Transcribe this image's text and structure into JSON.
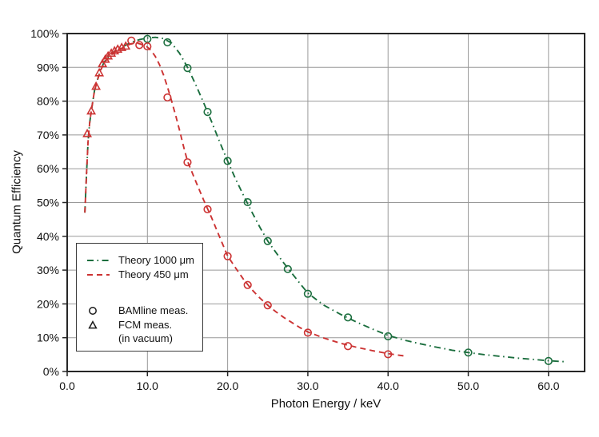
{
  "chart_data": {
    "type": "line",
    "title": "",
    "xlabel": "Photon Energy / keV",
    "ylabel": "Quantum Efficiency",
    "xlim": [
      0,
      64.5
    ],
    "ylim": [
      0,
      100
    ],
    "grid": true,
    "x_ticks": [
      0,
      10,
      20,
      30,
      40,
      50,
      60
    ],
    "x_tick_labels": [
      "0.0",
      "10.0",
      "20.0",
      "30.0",
      "40.0",
      "50.0",
      "60.0"
    ],
    "y_ticks": [
      0,
      10,
      20,
      30,
      40,
      50,
      60,
      70,
      80,
      90,
      100
    ],
    "y_tick_labels": [
      "0%",
      "10%",
      "20%",
      "30%",
      "40%",
      "50%",
      "60%",
      "70%",
      "80%",
      "90%",
      "100%"
    ],
    "colors": {
      "theory_1000": "#1b6e3e",
      "theory_450": "#cc3333",
      "grid": "#999999",
      "frame": "#262626",
      "legend_marker": "#1a1a1a"
    },
    "series": [
      {
        "name": "Theory 1000 μm",
        "type": "line",
        "style": "dashdot",
        "color": "#1b6e3e",
        "x": [
          2.2,
          2.4,
          2.6,
          2.8,
          3.0,
          3.4,
          3.8,
          4.2,
          4.6,
          5.0,
          5.5,
          6.0,
          6.5,
          7.0,
          7.5,
          8.0,
          9.0,
          10.0,
          11.0,
          12.0,
          13.0,
          14.0,
          15.0,
          16.0,
          17.0,
          18.0,
          19.0,
          20.0,
          21.0,
          22.0,
          23.0,
          24.0,
          25.0,
          26.0,
          27.0,
          28.0,
          29.0,
          30.0,
          32.0,
          34.0,
          36.0,
          38.0,
          40.0,
          42.0,
          44.0,
          46.0,
          48.0,
          50.0,
          52.0,
          54.0,
          56.0,
          58.0,
          60.0,
          62.0
        ],
        "y": [
          47,
          58,
          68,
          73.5,
          77,
          83,
          86.5,
          89.5,
          91.5,
          92.8,
          94.0,
          94.9,
          95.6,
          96.2,
          96.8,
          97.4,
          98.2,
          98.7,
          98.9,
          98.5,
          97.2,
          94.2,
          90.0,
          85.0,
          79.6,
          73.9,
          68.0,
          62.3,
          56.9,
          52.0,
          47.3,
          42.8,
          38.6,
          35.3,
          32.1,
          29.1,
          26.1,
          23.2,
          19.6,
          17.0,
          14.7,
          12.6,
          10.7,
          9.3,
          8.2,
          7.2,
          6.3,
          5.6,
          5.0,
          4.5,
          4.0,
          3.6,
          3.2,
          2.9
        ]
      },
      {
        "name": "Theory 450 μm",
        "type": "line",
        "style": "dashed",
        "color": "#cc3333",
        "x": [
          2.2,
          2.4,
          2.6,
          2.8,
          3.0,
          3.4,
          3.8,
          4.2,
          4.6,
          5.0,
          5.5,
          6.0,
          6.5,
          7.0,
          7.5,
          8.0,
          8.5,
          9.0,
          9.5,
          10.0,
          10.5,
          11.0,
          11.5,
          12.0,
          12.5,
          13.0,
          13.5,
          14.0,
          14.5,
          15.0,
          16.0,
          17.0,
          18.0,
          19.0,
          20.0,
          21.0,
          22.0,
          23.0,
          24.0,
          25.0,
          26.0,
          27.0,
          28.0,
          29.0,
          30.0,
          32.0,
          34.0,
          36.0,
          38.0,
          40.0,
          42.0
        ],
        "y": [
          47,
          58,
          68,
          73.5,
          77,
          83,
          86.4,
          89.3,
          91.2,
          92.5,
          93.7,
          94.6,
          95.3,
          95.9,
          96.5,
          97.0,
          97.2,
          97.0,
          96.6,
          96.0,
          94.9,
          93.2,
          90.8,
          87.8,
          84.2,
          80.2,
          76.0,
          71.5,
          66.7,
          62.2,
          56.4,
          50.8,
          45.5,
          39.8,
          34.2,
          30.6,
          27.2,
          24.3,
          21.8,
          19.6,
          17.7,
          16.0,
          14.5,
          13.0,
          11.7,
          9.9,
          8.4,
          7.2,
          6.2,
          5.3,
          4.6
        ]
      },
      {
        "name": "BAMline meas. (1000 μm)",
        "type": "scatter",
        "marker": "circle",
        "color": "#1b6e3e",
        "x": [
          10.0,
          12.5,
          15.0,
          17.5,
          20.0,
          22.5,
          25.0,
          27.5,
          30.0,
          35.0,
          40.0,
          50.0,
          60.0
        ],
        "y": [
          98.4,
          97.4,
          89.8,
          76.8,
          62.3,
          50.1,
          38.6,
          30.3,
          23.0,
          16.0,
          10.4,
          5.6,
          3.1
        ]
      },
      {
        "name": "BAMline meas. (450 μm)",
        "type": "scatter",
        "marker": "circle",
        "color": "#cc3333",
        "x": [
          8.0,
          9.0,
          10.0,
          12.5,
          15.0,
          17.5,
          20.0,
          22.5,
          25.0,
          30.0,
          35.0,
          40.0
        ],
        "y": [
          97.9,
          96.6,
          96.2,
          81.1,
          61.9,
          48.0,
          34.1,
          25.6,
          19.6,
          11.5,
          7.5,
          5.1
        ]
      },
      {
        "name": "FCM meas. (in vacuum)",
        "type": "scatter",
        "marker": "triangle",
        "color": "#cc3333",
        "x": [
          2.5,
          3.0,
          3.6,
          4.0,
          4.4,
          4.75,
          5.1,
          5.5,
          5.9,
          6.3,
          6.8,
          7.3
        ],
        "y": [
          70.3,
          77.0,
          84.3,
          88.3,
          91.0,
          92.3,
          93.3,
          94.1,
          94.8,
          95.3,
          95.8,
          96.2
        ]
      }
    ],
    "legend_position": "middle-left"
  },
  "legend": {
    "items": [
      {
        "label": "Theory 1000 μm"
      },
      {
        "label": "Theory 450 μm"
      },
      {
        "label": "BAMline meas."
      },
      {
        "label": "FCM meas.",
        "label2": "(in vacuum)"
      }
    ]
  }
}
